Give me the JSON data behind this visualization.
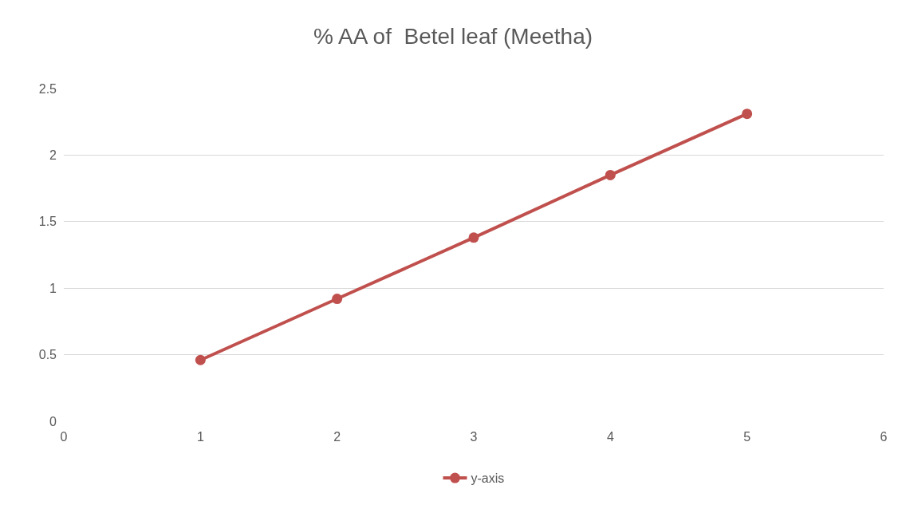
{
  "chart_data": {
    "type": "line",
    "title": "% AA of  Betel leaf (Meetha)",
    "x": [
      1,
      2,
      3,
      4,
      5
    ],
    "series": [
      {
        "name": "y-axis",
        "color": "#c0504d",
        "values": [
          0.46,
          0.92,
          1.38,
          1.85,
          2.31
        ]
      }
    ],
    "xlim": [
      0,
      6
    ],
    "xticks": [
      0,
      1,
      2,
      3,
      4,
      5,
      6
    ],
    "ylim": [
      0,
      2.5
    ],
    "yticks": [
      0,
      0.5,
      1,
      1.5,
      2,
      2.5
    ],
    "grid": "y",
    "legend": "bottom",
    "marker": "circle",
    "line_style": "solid"
  }
}
